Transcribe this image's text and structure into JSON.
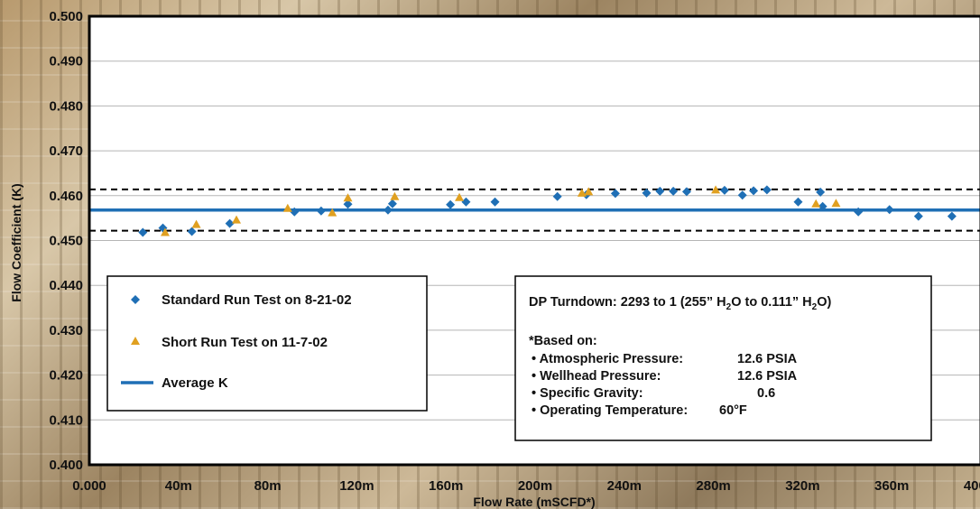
{
  "chart_data": {
    "type": "scatter",
    "title": "",
    "xlabel": "Flow Rate (mSCFD*)",
    "ylabel": "Flow Coefficient (K)",
    "xlim": [
      0,
      400
    ],
    "ylim": [
      0.4,
      0.5
    ],
    "x_ticks": [
      0,
      40,
      80,
      120,
      160,
      200,
      240,
      280,
      320,
      360,
      400
    ],
    "x_tick_labels": [
      "0.000",
      "40m",
      "80m",
      "120m",
      "160m",
      "200m",
      "240m",
      "280m",
      "320m",
      "360m",
      "400m"
    ],
    "y_ticks": [
      0.4,
      0.41,
      0.42,
      0.43,
      0.44,
      0.45,
      0.46,
      0.47,
      0.48,
      0.49,
      0.5
    ],
    "y_tick_labels": [
      "0.400",
      "0.410",
      "0.420",
      "0.430",
      "0.440",
      "0.450",
      "0.460",
      "0.470",
      "0.480",
      "0.490",
      "0.500"
    ],
    "grid": true,
    "series": [
      {
        "name": "Standard Run Test on 8-21-02",
        "marker": "diamond",
        "color": "#1f6fb5",
        "points": [
          [
            24,
            0.4518
          ],
          [
            33,
            0.4528
          ],
          [
            46,
            0.452
          ],
          [
            63,
            0.4538
          ],
          [
            92,
            0.4564
          ],
          [
            104,
            0.4566
          ],
          [
            116,
            0.4581
          ],
          [
            134,
            0.4568
          ],
          [
            136,
            0.4582
          ],
          [
            162,
            0.458
          ],
          [
            169,
            0.4586
          ],
          [
            182,
            0.4586
          ],
          [
            210,
            0.4598
          ],
          [
            223,
            0.4602
          ],
          [
            236,
            0.4605
          ],
          [
            250,
            0.4606
          ],
          [
            256,
            0.461
          ],
          [
            262,
            0.461
          ],
          [
            268,
            0.4609
          ],
          [
            285,
            0.4612
          ],
          [
            293,
            0.4601
          ],
          [
            298,
            0.4611
          ],
          [
            304,
            0.4613
          ],
          [
            318,
            0.4586
          ],
          [
            328,
            0.4608
          ],
          [
            329,
            0.4576
          ],
          [
            345,
            0.4564
          ],
          [
            359,
            0.4569
          ],
          [
            372,
            0.4554
          ],
          [
            387,
            0.4554
          ]
        ]
      },
      {
        "name": "Short Run Test on 11-7-02",
        "marker": "triangle",
        "color": "#e0a020",
        "points": [
          [
            34,
            0.4518
          ],
          [
            48,
            0.4536
          ],
          [
            66,
            0.4546
          ],
          [
            89,
            0.4572
          ],
          [
            109,
            0.4562
          ],
          [
            116,
            0.4595
          ],
          [
            137,
            0.4598
          ],
          [
            166,
            0.4596
          ],
          [
            221,
            0.4606
          ],
          [
            224,
            0.4609
          ],
          [
            281,
            0.4613
          ],
          [
            326,
            0.4582
          ],
          [
            335,
            0.4583
          ]
        ]
      },
      {
        "name": "Average K",
        "type": "line",
        "color": "#1f6fb5",
        "value": 0.4568
      }
    ],
    "reference_lines": [
      {
        "style": "dashed",
        "value": 0.4614
      },
      {
        "style": "dashed",
        "value": 0.4522
      }
    ],
    "annotations": {
      "turndown_prefix": "DP Turndown: 2293 to 1 (255” H",
      "turndown_sub1": "2",
      "turndown_mid": "O to 0.111” H",
      "turndown_sub2": "2",
      "turndown_suffix": "O)",
      "based_on": "*Based on:",
      "conditions": [
        {
          "label": "• Atmospheric Pressure:",
          "value": "12.6 PSIA"
        },
        {
          "label": "• Wellhead Pressure:",
          "value": "12.6 PSIA"
        },
        {
          "label": "• Specific Gravity:",
          "value": "0.6"
        },
        {
          "label": "• Operating Temperature:",
          "value": "60°F"
        }
      ]
    }
  }
}
